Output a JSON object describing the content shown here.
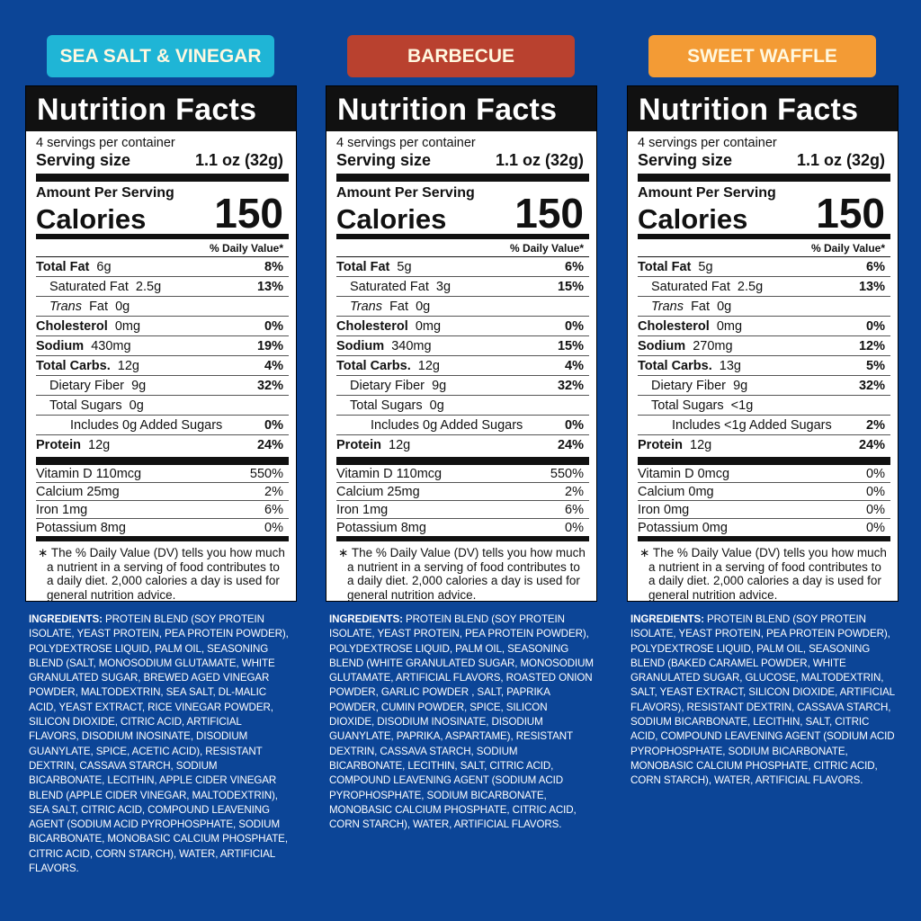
{
  "panels": [
    {
      "flavor": "SEA SALT & VINEGAR",
      "facts": {
        "title": "Nutrition Facts",
        "servings": "4 servings per container",
        "serving_size_label": "Serving size",
        "serving_size": "1.1 oz (32g)",
        "amount_label": "Amount Per Serving",
        "calories_label": "Calories",
        "calories": "150",
        "dv_header": "% Daily Value*",
        "rows": [
          {
            "label": "Total Fat",
            "amount": "6g",
            "dv": "8%"
          },
          {
            "label": "Saturated Fat",
            "amount": "2.5g",
            "dv": "13%"
          },
          {
            "label": "Trans",
            "amount": "Fat  0g"
          },
          {
            "label": "Cholesterol",
            "amount": "0mg",
            "dv": "0%"
          },
          {
            "label": "Sodium",
            "amount": "430mg",
            "dv": "19%"
          },
          {
            "label": "Total Carbs.",
            "amount": "12g",
            "dv": "4%"
          },
          {
            "label": "Dietary Fiber",
            "amount": "9g",
            "dv": "32%"
          },
          {
            "label": "Total Sugars",
            "amount": "0g"
          },
          {
            "label": "Includes 0g Added Sugars",
            "dv": "0%"
          },
          {
            "label": "Protein",
            "amount": "12g",
            "dv": "24%"
          }
        ],
        "vitamins": [
          {
            "label": "Vitamin D 110mcg",
            "dv": "550%"
          },
          {
            "label": "Calcium 25mg",
            "dv": "2%"
          },
          {
            "label": "Iron 1mg",
            "dv": "6%"
          },
          {
            "label": "Potassium 8mg",
            "dv": "0%"
          }
        ],
        "footnote": "The % Daily Value (DV) tells you how much a nutrient in a serving of food contributes to a daily diet. 2,000 calories a day is used for general nutrition advice."
      },
      "ingredients_label": "INGREDIENTS:",
      "ingredients": "PROTEIN BLEND (SOY PROTEIN ISOLATE, YEAST PROTEIN, PEA PROTEIN POWDER), POLYDEXTROSE LIQUID, PALM OIL, SEASONING BLEND (SALT, MONOSODIUM GLUTAMATE, WHITE GRANULATED SUGAR, BREWED AGED VINEGAR POWDER, MALTODEXTRIN, SEA SALT, DL-MALIC ACID, YEAST EXTRACT, RICE VINEGAR POWDER, SILICON DIOXIDE, CITRIC ACID, ARTIFICIAL FLAVORS, DISODIUM INOSINATE, DISODIUM GUANYLATE, SPICE, ACETIC ACID), RESISTANT DEXTRIN, CASSAVA STARCH, SODIUM BICARBONATE, LECITHIN, APPLE CIDER VINEGAR BLEND (APPLE CIDER VINEGAR, MALTODEXTRIN), SEA SALT, CITRIC ACID, COMPOUND LEAVENING AGENT (SODIUM ACID PYROPHOSPHATE, SODIUM BICARBONATE, MONOBASIC CALCIUM PHOSPHATE, CITRIC ACID, CORN STARCH), WATER, ARTIFICIAL FLAVORS."
    },
    {
      "flavor": "BARBECUE",
      "facts": {
        "title": "Nutrition Facts",
        "servings": "4 servings per container",
        "serving_size_label": "Serving size",
        "serving_size": "1.1 oz (32g)",
        "amount_label": "Amount Per Serving",
        "calories_label": "Calories",
        "calories": "150",
        "dv_header": "% Daily Value*",
        "rows": [
          {
            "label": "Total Fat",
            "amount": "5g",
            "dv": "6%"
          },
          {
            "label": "Saturated Fat",
            "amount": "3g",
            "dv": "15%"
          },
          {
            "label": "Trans",
            "amount": "Fat  0g"
          },
          {
            "label": "Cholesterol",
            "amount": "0mg",
            "dv": "0%"
          },
          {
            "label": "Sodium",
            "amount": "340mg",
            "dv": "15%"
          },
          {
            "label": "Total Carbs.",
            "amount": "12g",
            "dv": "4%"
          },
          {
            "label": "Dietary Fiber",
            "amount": "9g",
            "dv": "32%"
          },
          {
            "label": "Total Sugars",
            "amount": "0g"
          },
          {
            "label": "Includes 0g Added Sugars",
            "dv": "0%"
          },
          {
            "label": "Protein",
            "amount": "12g",
            "dv": "24%"
          }
        ],
        "vitamins": [
          {
            "label": "Vitamin D 110mcg",
            "dv": "550%"
          },
          {
            "label": "Calcium 25mg",
            "dv": "2%"
          },
          {
            "label": "Iron 1mg",
            "dv": "6%"
          },
          {
            "label": "Potassium 8mg",
            "dv": "0%"
          }
        ],
        "footnote": "The % Daily Value (DV) tells you how much a nutrient in a serving of food contributes to a daily diet. 2,000 calories a day is used for general nutrition advice."
      },
      "ingredients_label": "INGREDIENTS:",
      "ingredients": "PROTEIN BLEND (SOY PROTEIN ISOLATE, YEAST PROTEIN, PEA PROTEIN POWDER), POLYDEXTROSE LIQUID, PALM OIL, SEASONING BLEND (WHITE GRANULATED SUGAR, MONOSODIUM GLUTAMATE, ARTIFICIAL FLAVORS, ROASTED ONION POWDER, GARLIC POWDER , SALT, PAPRIKA POWDER, CUMIN POWDER, SPICE, SILICON DIOXIDE, DISODIUM INOSINATE, DISODIUM GUANYLATE, PAPRIKA, ASPARTAME), RESISTANT DEXTRIN, CASSAVA STARCH, SODIUM BICARBONATE, LECITHIN, SALT, CITRIC ACID, COMPOUND LEAVENING AGENT (SODIUM ACID PYROPHOSPHATE, SODIUM BICARBONATE, MONOBASIC CALCIUM PHOSPHATE, CITRIC ACID, CORN STARCH), WATER, ARTIFICIAL FLAVORS."
    },
    {
      "flavor": "SWEET WAFFLE",
      "facts": {
        "title": "Nutrition Facts",
        "servings": "4 servings per container",
        "serving_size_label": "Serving size",
        "serving_size": "1.1 oz (32g)",
        "amount_label": "Amount Per Serving",
        "calories_label": "Calories",
        "calories": "150",
        "dv_header": "% Daily Value*",
        "rows": [
          {
            "label": "Total Fat",
            "amount": "5g",
            "dv": "6%"
          },
          {
            "label": "Saturated Fat",
            "amount": "2.5g",
            "dv": "13%"
          },
          {
            "label": "Trans",
            "amount": "Fat  0g"
          },
          {
            "label": "Cholesterol",
            "amount": "0mg",
            "dv": "0%"
          },
          {
            "label": "Sodium",
            "amount": "270mg",
            "dv": "12%"
          },
          {
            "label": "Total Carbs.",
            "amount": "13g",
            "dv": "5%"
          },
          {
            "label": "Dietary Fiber",
            "amount": "9g",
            "dv": "32%"
          },
          {
            "label": "Total Sugars",
            "amount": "<1g"
          },
          {
            "label": "Includes <1g Added Sugars",
            "dv": "2%"
          },
          {
            "label": "Protein",
            "amount": "12g",
            "dv": "24%"
          }
        ],
        "vitamins": [
          {
            "label": "Vitamin D 0mcg",
            "dv": "0%"
          },
          {
            "label": "Calcium 0mg",
            "dv": "0%"
          },
          {
            "label": "Iron 0mg",
            "dv": "0%"
          },
          {
            "label": "Potassium 0mg",
            "dv": "0%"
          }
        ],
        "footnote": "The % Daily Value (DV) tells you how much a nutrient in a serving of food contributes to a daily diet. 2,000 calories a day is used for general nutrition advice."
      },
      "ingredients_label": "INGREDIENTS:",
      "ingredients": "PROTEIN BLEND (SOY PROTEIN ISOLATE, YEAST PROTEIN, PEA PROTEIN POWDER), POLYDEXTROSE LIQUID, PALM OIL, SEASONING BLEND (BAKED CARAMEL POWDER, WHITE GRANULATED SUGAR, GLUCOSE, MALTODEXTRIN, SALT, YEAST EXTRACT, SILICON DIOXIDE, ARTIFICIAL FLAVORS), RESISTANT DEXTRIN, CASSAVA STARCH, SODIUM BICARBONATE, LECITHIN, SALT, CITRIC ACID, COMPOUND LEAVENING AGENT (SODIUM ACID PYROPHOSPHATE, SODIUM BICARBONATE, MONOBASIC CALCIUM PHOSPHATE, CITRIC ACID, CORN STARCH), WATER, ARTIFICIAL FLAVORS."
    }
  ]
}
